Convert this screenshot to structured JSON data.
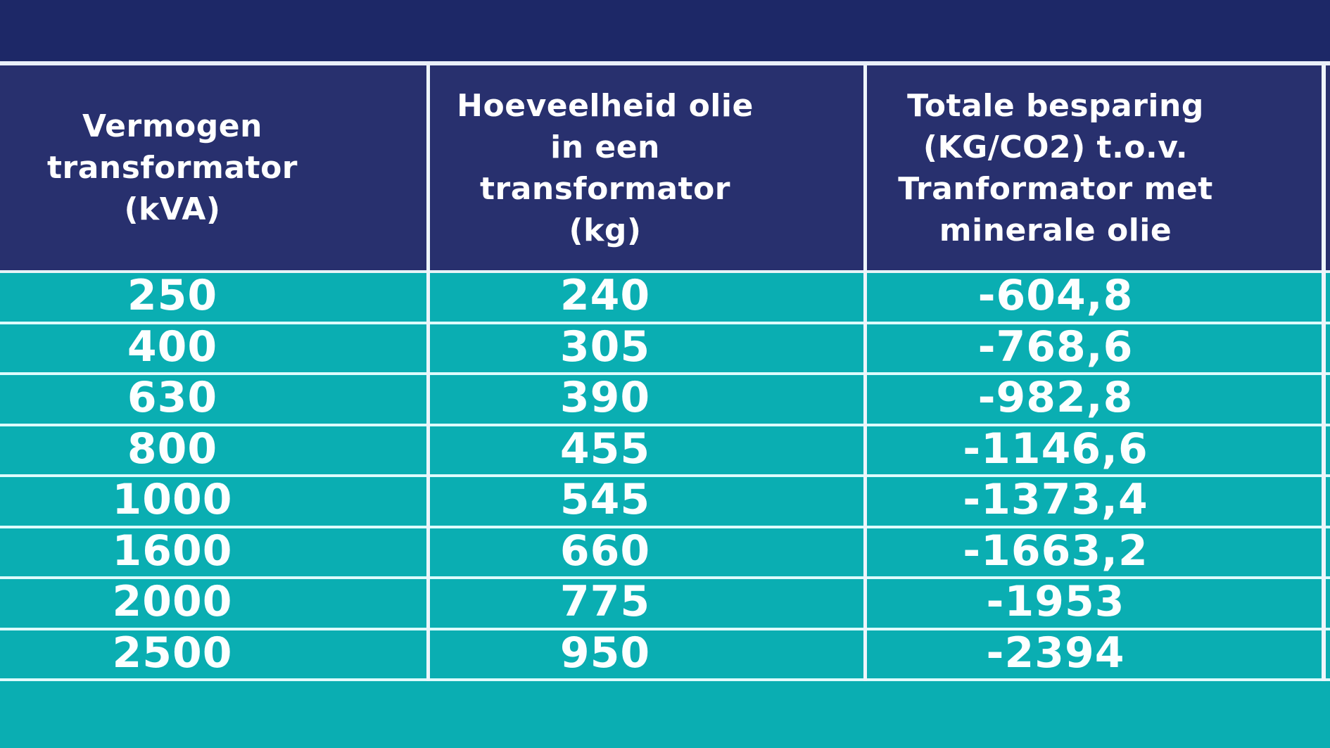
{
  "colors": {
    "header_navy": "#28306e",
    "top_strip_navy": "#1d2867",
    "body_teal": "#0aaeb2",
    "grid_line_light": "#ddfbfc",
    "border_white": "#eef5fb",
    "text_white": "#ffffff"
  },
  "chart_data": {
    "type": "table",
    "columns": [
      "Vermogen\ntransformator\n(kVA)",
      "Hoeveelheid olie\nin een\ntransformator\n(kg)",
      "Totale besparing\n(KG/CO2) t.o.v.\nTranformator met\nminerale olie"
    ],
    "rows": [
      [
        "250",
        "240",
        "-604,8"
      ],
      [
        "400",
        "305",
        "-768,6"
      ],
      [
        "630",
        "390",
        "-982,8"
      ],
      [
        "800",
        "455",
        "-1146,6"
      ],
      [
        "1000",
        "545",
        "-1373,4"
      ],
      [
        "1600",
        "660",
        "-1663,2"
      ],
      [
        "2000",
        "775",
        "-1953"
      ],
      [
        "2500",
        "950",
        "-2394"
      ]
    ]
  }
}
